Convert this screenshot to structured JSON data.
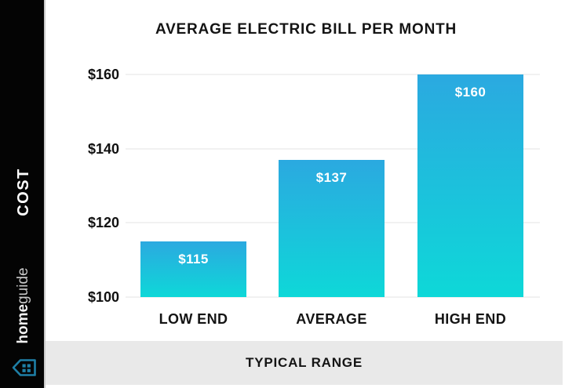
{
  "header": {
    "title": "AVERAGE ELECTRIC BILL PER MONTH"
  },
  "sidebar": {
    "cost_label": "COST",
    "brand_bold": "home",
    "brand_light": "guide",
    "logo_icon": "house-grid-icon"
  },
  "footer": {
    "label": "TYPICAL RANGE"
  },
  "colors": {
    "sidebar_bg": "#040404",
    "bar_gradient_top": "#2BA9E0",
    "bar_gradient_bottom": "#0ED8D8",
    "logo_blue": "#1E7FA6",
    "footer_band_bg": "#e9e9e9",
    "gridline": "#f1f1f1",
    "text_dark": "#141414"
  },
  "chart_data": {
    "type": "bar",
    "title": "AVERAGE ELECTRIC BILL PER MONTH",
    "categories": [
      "LOW END",
      "AVERAGE",
      "HIGH END"
    ],
    "values": [
      115,
      137,
      160
    ],
    "value_labels": [
      "$115",
      "$137",
      "$160"
    ],
    "xlabel": "TYPICAL RANGE",
    "ylabel": "COST",
    "ylim": [
      100,
      160
    ],
    "y_tick_values": [
      160,
      140,
      120,
      100
    ],
    "y_tick_labels": [
      "$160",
      "$140",
      "$120",
      "$100"
    ],
    "grid": true,
    "legend": "none",
    "bar_label_position": "inside-top"
  }
}
